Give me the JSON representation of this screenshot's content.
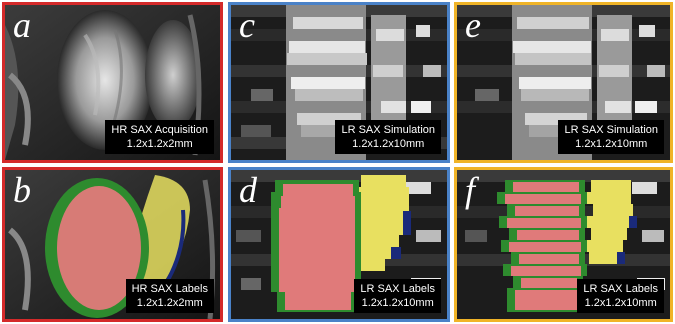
{
  "colors": {
    "hr_border": "#d42a2a",
    "lr_border": "#4a82c8",
    "gt_border": "#f0b428",
    "lv_label": "#e07a7a",
    "rv_label": "#e8e060",
    "myo_label": "#2e8b2e"
  },
  "panels": [
    {
      "letter": "a",
      "caption_line1": "HR SAX Acquisition",
      "caption_line2": "1.2x1.2x2mm"
    },
    {
      "letter": "b",
      "caption_line1": "HR SAX Labels",
      "caption_line2": "1.2x1.2x2mm"
    },
    {
      "letter": "c",
      "caption_line1": "LR SAX Simulation",
      "caption_line2": "1.2x1.2x10mm"
    },
    {
      "letter": "d",
      "caption_line1": "LR SAX Labels",
      "caption_line2": "1.2x1.2x10mm"
    },
    {
      "letter": "e",
      "caption_line1": "LR SAX Simulation",
      "caption_line2": "1.2x1.2x10mm"
    },
    {
      "letter": "f",
      "caption_line1": "LR SAX Labels",
      "caption_line2": "1.2x1.2x10mm"
    }
  ]
}
